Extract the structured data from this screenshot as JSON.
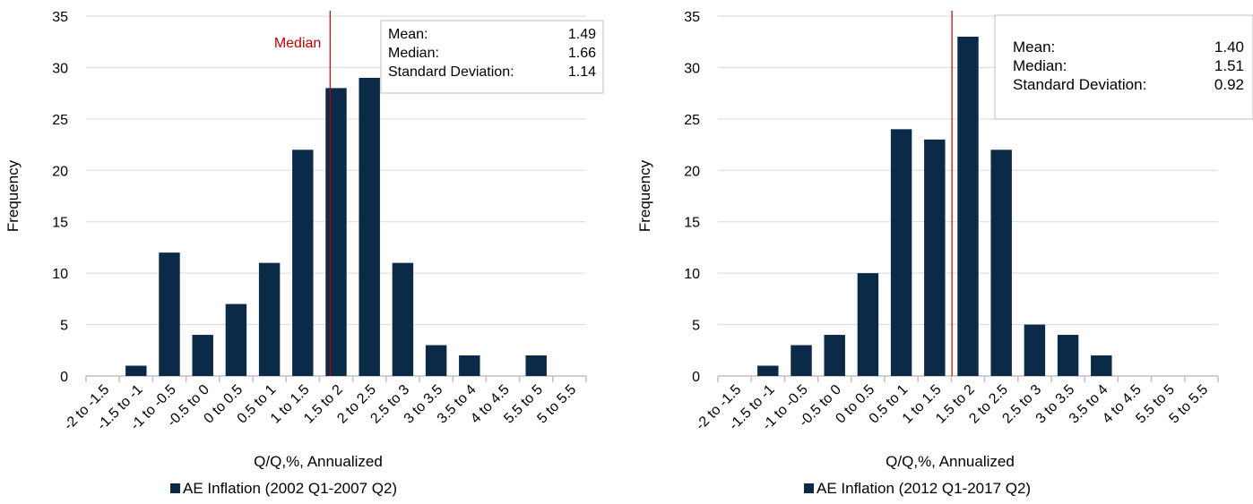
{
  "colors": {
    "bar": "#0b2a48",
    "median_line": "#c00000",
    "grid": "#d9d9d9",
    "axis": "#bfbfbf",
    "box_border": "#bfbfbf"
  },
  "chart_data": [
    {
      "type": "bar",
      "categories": [
        "-2 to -1.5",
        "-1.5 to -1",
        "-1 to -0.5",
        "-0.5 to 0",
        "0 to 0.5",
        "0.5 to 1",
        "1 to 1.5",
        "1.5 to 2",
        "2 to 2.5",
        "2.5 to 3",
        "3 to 3.5",
        "3.5 to 4",
        "4 to 4.5",
        "5.5 to 5",
        "5 to 5.5"
      ],
      "series": [
        {
          "name": "AE Inflation (2002 Q1-2007 Q2)",
          "values": [
            0,
            1,
            12,
            4,
            7,
            11,
            22,
            28,
            29,
            11,
            3,
            2,
            0,
            2,
            0
          ]
        }
      ],
      "xlabel": "Q/Q,%, Annualized",
      "ylabel": "Frequency",
      "ylim": [
        0,
        35
      ],
      "yticks": [
        0,
        5,
        10,
        15,
        20,
        25,
        30,
        35
      ],
      "grid": true,
      "legend": "bottom",
      "median_line": {
        "value": 1.66,
        "label": "Median"
      },
      "stats_box": {
        "position": "top-right",
        "rows": [
          {
            "label": "Mean:",
            "value": "1.49"
          },
          {
            "label": "Median:",
            "value": "1.66"
          },
          {
            "label": "Standard Deviation:",
            "value": "1.14"
          }
        ]
      }
    },
    {
      "type": "bar",
      "categories": [
        "-2 to -1.5",
        "-1.5 to -1",
        "-1 to -0.5",
        "-0.5 to 0",
        "0 to 0.5",
        "0.5 to 1",
        "1 to 1.5",
        "1.5 to 2",
        "2 to 2.5",
        "2.5 to 3",
        "3 to 3.5",
        "3.5 to 4",
        "4 to 4.5",
        "5.5 to 5",
        "5 to 5.5"
      ],
      "series": [
        {
          "name": "AE Inflation (2012 Q1-2017 Q2)",
          "values": [
            0,
            1,
            3,
            4,
            10,
            24,
            23,
            33,
            22,
            5,
            4,
            2,
            0,
            0,
            0
          ]
        }
      ],
      "xlabel": "Q/Q,%, Annualized",
      "ylabel": "Frequency",
      "ylim": [
        0,
        35
      ],
      "yticks": [
        0,
        5,
        10,
        15,
        20,
        25,
        30,
        35
      ],
      "grid": true,
      "legend": "bottom",
      "median_line": {
        "value": 1.51,
        "label": ""
      },
      "stats_box": {
        "position": "top-right",
        "rows": [
          {
            "label": "Mean:",
            "value": "1.40"
          },
          {
            "label": "Median:",
            "value": "1.51"
          },
          {
            "label": "Standard Deviation:",
            "value": "0.92"
          }
        ]
      }
    }
  ]
}
